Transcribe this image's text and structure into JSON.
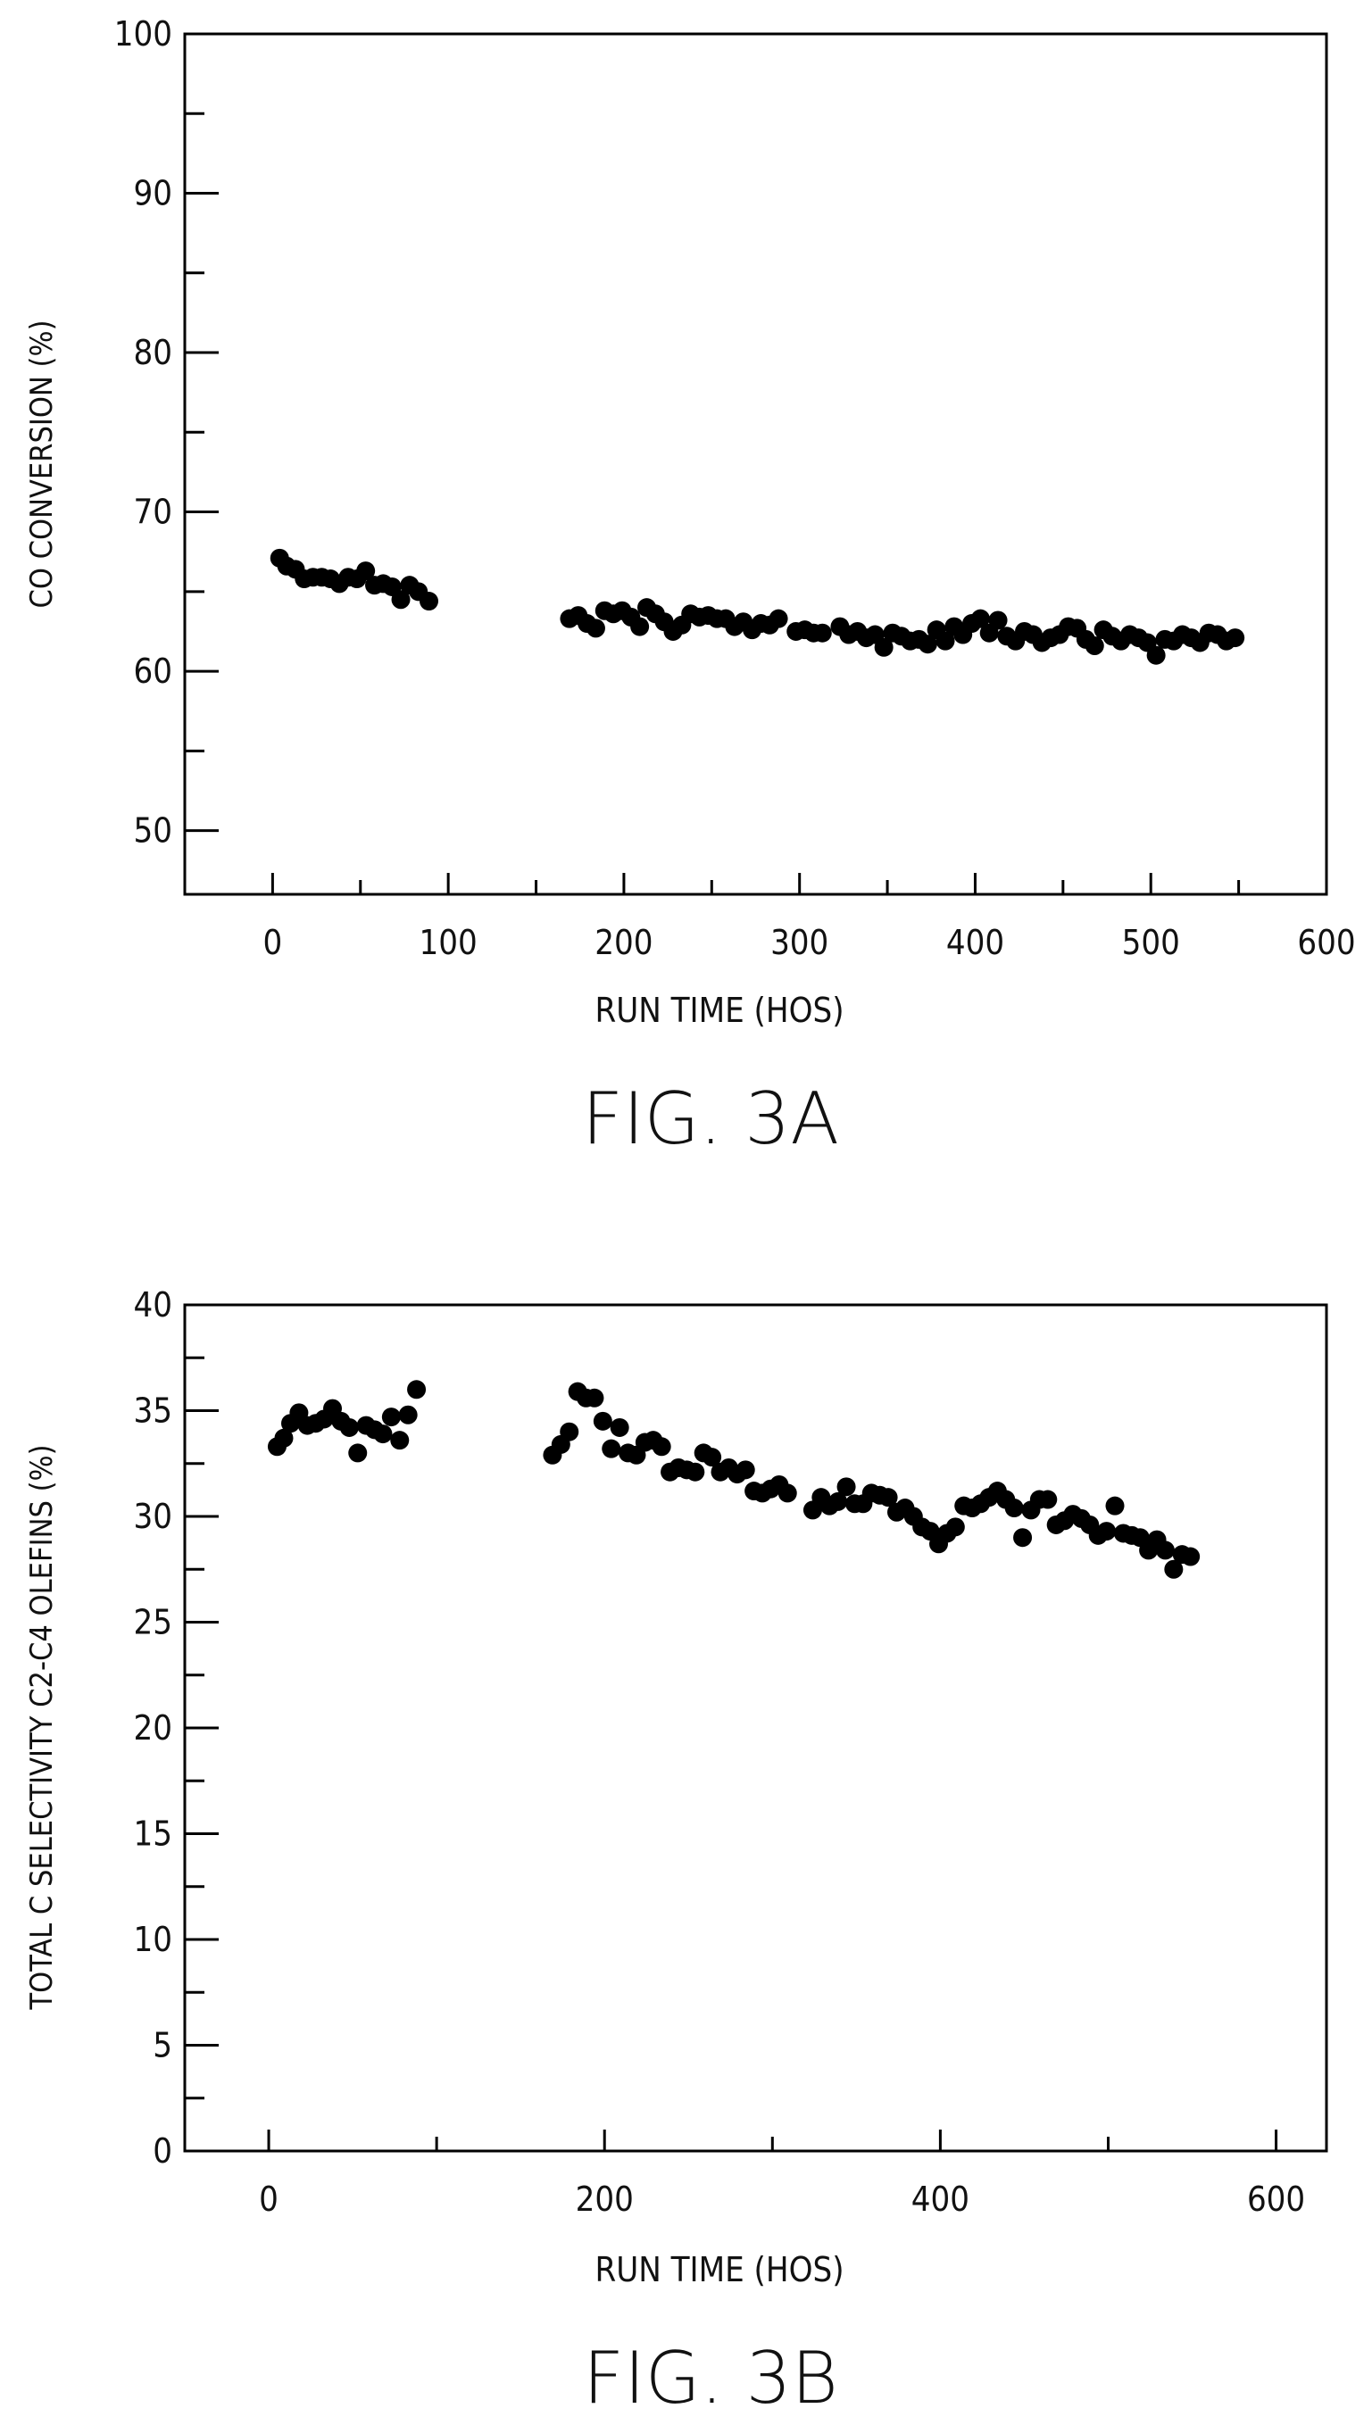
{
  "chart_data": [
    {
      "type": "scatter",
      "title": "",
      "caption": "FIG. 3A",
      "xlabel": "RUN TIME (HOS)",
      "ylabel": "CO CONVERSION (%)",
      "xlim": [
        -50,
        600
      ],
      "ylim": [
        46,
        100
      ],
      "xticks": [
        0,
        100,
        200,
        300,
        400,
        500,
        600
      ],
      "yticks": [
        50,
        60,
        70,
        80,
        90,
        100
      ],
      "grid": false,
      "marker_color": "#000000",
      "series": [
        {
          "x": [
            4,
            8,
            13,
            18,
            23,
            28,
            33,
            38,
            43,
            48,
            53,
            58,
            63,
            68,
            73,
            78,
            83,
            89,
            169,
            174,
            179,
            184,
            189,
            194,
            199,
            204,
            209,
            213,
            218,
            223,
            228,
            233,
            238,
            243,
            248,
            253,
            258,
            263,
            268,
            273,
            278,
            283,
            288,
            298,
            303,
            308,
            313,
            323,
            328,
            333,
            338,
            343,
            348,
            353,
            358,
            363,
            368,
            373,
            378,
            383,
            388,
            393,
            398,
            403,
            408,
            413,
            418,
            423,
            428,
            433,
            438,
            443,
            448,
            453,
            458,
            463,
            468,
            473,
            478,
            483,
            488,
            493,
            498,
            503,
            508,
            513,
            518,
            523,
            528,
            533,
            538,
            543,
            548
          ],
          "y": [
            67.1,
            66.6,
            66.4,
            65.8,
            65.9,
            65.9,
            65.8,
            65.5,
            65.9,
            65.8,
            66.3,
            65.4,
            65.5,
            65.3,
            64.5,
            65.4,
            65.0,
            64.4,
            63.3,
            63.5,
            63.0,
            62.7,
            63.8,
            63.6,
            63.8,
            63.4,
            62.8,
            64.0,
            63.6,
            63.1,
            62.5,
            62.9,
            63.6,
            63.4,
            63.5,
            63.3,
            63.3,
            62.8,
            63.1,
            62.6,
            63.0,
            62.9,
            63.3,
            62.5,
            62.6,
            62.4,
            62.4,
            62.8,
            62.3,
            62.5,
            62.1,
            62.3,
            61.5,
            62.4,
            62.2,
            61.9,
            62.0,
            61.7,
            62.6,
            61.9,
            62.8,
            62.3,
            63.0,
            63.3,
            62.4,
            63.2,
            62.2,
            61.9,
            62.5,
            62.3,
            61.8,
            62.1,
            62.3,
            62.8,
            62.7,
            62.0,
            61.6,
            62.6,
            62.2,
            61.9,
            62.3,
            62.1,
            61.8,
            61.0,
            62.0,
            61.9,
            62.3,
            62.1,
            61.8,
            62.4,
            62.3,
            61.9,
            62.1
          ]
        }
      ]
    },
    {
      "type": "scatter",
      "title": "",
      "caption": "FIG. 3B",
      "xlabel": "RUN TIME (HOS)",
      "ylabel": "TOTAL C SELECTIVITY C2-C4 OLEFINS (%)",
      "xlim": [
        -50,
        630
      ],
      "ylim": [
        0,
        40
      ],
      "xticks": [
        0,
        200,
        400,
        600
      ],
      "yticks": [
        0,
        5,
        10,
        15,
        20,
        25,
        30,
        35,
        40
      ],
      "grid": false,
      "marker_color": "#000000",
      "series": [
        {
          "x": [
            5,
            9,
            13,
            18,
            23,
            28,
            33,
            38,
            43,
            48,
            53,
            58,
            63,
            68,
            73,
            78,
            83,
            88,
            169,
            174,
            179,
            184,
            189,
            194,
            199,
            204,
            209,
            214,
            219,
            224,
            229,
            234,
            239,
            244,
            249,
            254,
            259,
            264,
            269,
            274,
            279,
            284,
            289,
            294,
            299,
            304,
            309,
            324,
            329,
            334,
            339,
            344,
            349,
            354,
            359,
            364,
            369,
            374,
            379,
            384,
            389,
            394,
            399,
            404,
            409,
            414,
            419,
            424,
            429,
            434,
            439,
            444,
            449,
            454,
            459,
            464,
            469,
            474,
            479,
            484,
            489,
            494,
            499,
            504,
            509,
            514,
            519,
            524,
            529,
            534,
            539,
            544,
            549
          ],
          "y": [
            33.3,
            33.7,
            34.4,
            34.9,
            34.3,
            34.4,
            34.6,
            35.1,
            34.5,
            34.2,
            33.0,
            34.3,
            34.1,
            33.9,
            34.7,
            33.6,
            34.8,
            36.0,
            32.9,
            33.4,
            34.0,
            35.9,
            35.6,
            35.6,
            34.5,
            33.2,
            34.2,
            33.0,
            32.9,
            33.5,
            33.6,
            33.3,
            32.1,
            32.3,
            32.2,
            32.1,
            33.0,
            32.8,
            32.1,
            32.3,
            32.0,
            32.2,
            31.2,
            31.1,
            31.3,
            31.5,
            31.1,
            30.3,
            30.9,
            30.5,
            30.7,
            31.4,
            30.6,
            30.6,
            31.1,
            31.0,
            30.9,
            30.2,
            30.4,
            30.0,
            29.5,
            29.3,
            28.7,
            29.2,
            29.5,
            30.5,
            30.4,
            30.6,
            30.9,
            31.2,
            30.8,
            30.4,
            29.0,
            30.3,
            30.8,
            30.8,
            29.6,
            29.8,
            30.1,
            29.9,
            29.6,
            29.1,
            29.3,
            30.5,
            29.2,
            29.1,
            29.0,
            28.4,
            28.9,
            28.4,
            27.5,
            28.2,
            28.1
          ]
        }
      ]
    }
  ]
}
